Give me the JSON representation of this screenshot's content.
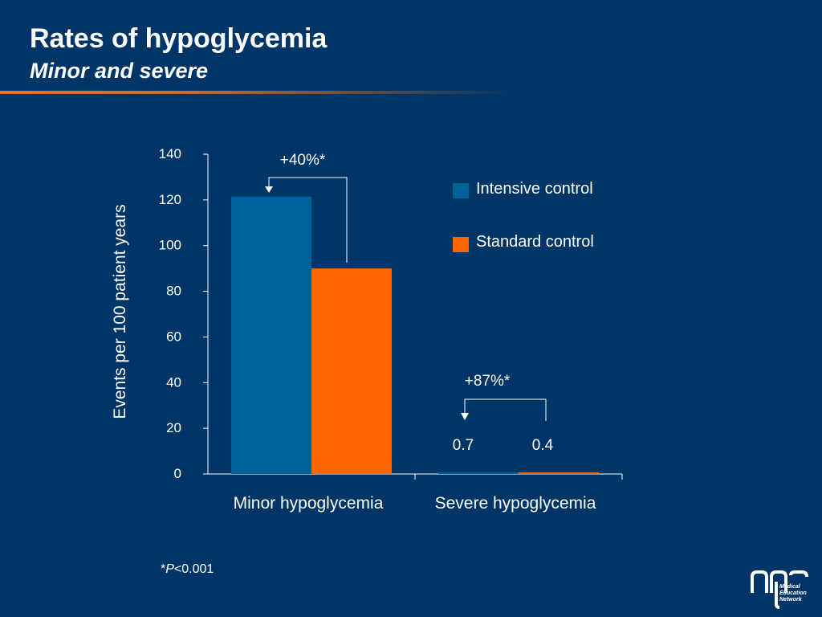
{
  "slide": {
    "title": "Rates of hypoglycemia",
    "subtitle": "Minor and severe",
    "footnote_star": "*",
    "footnote_p": "P",
    "footnote_rest": "<0.001",
    "logo_lines": [
      "Medical",
      "Education",
      "Network"
    ]
  },
  "chart_data": {
    "type": "bar",
    "ylabel": "Events per 100 patient years",
    "xlabel": "",
    "ylim": [
      0,
      140
    ],
    "yticks": [
      0,
      20,
      40,
      60,
      80,
      100,
      120,
      140
    ],
    "categories": [
      "Minor hypoglycemia",
      "Severe hypoglycemia"
    ],
    "series": [
      {
        "name": "Intensive control",
        "color": "#006199",
        "values": [
          121.5,
          0.7
        ]
      },
      {
        "name": "Standard control",
        "color": "#ff6600",
        "values": [
          90,
          0.4
        ]
      }
    ],
    "value_labels": [
      "",
      "0.7",
      "",
      "0.4"
    ],
    "annotations": [
      "+40%*",
      "+87%*"
    ],
    "legend": "top-right",
    "grid": false
  }
}
